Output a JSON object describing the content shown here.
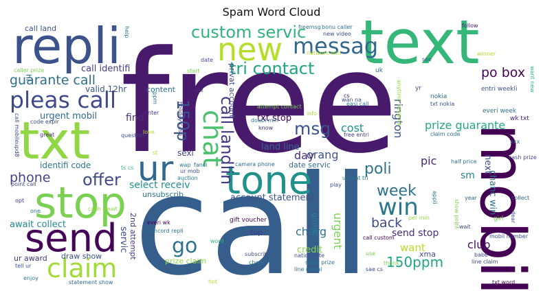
{
  "chart_data": {
    "type": "word_cloud",
    "title": "Spam Word Cloud",
    "words": [
      {
        "text": "free",
        "color": "#481a6c"
      },
      {
        "text": "call",
        "color": "#355e8d"
      },
      {
        "text": "text",
        "color": "#35b779"
      },
      {
        "text": "txt",
        "color": "#90d743"
      },
      {
        "text": "mobil",
        "color": "#440154"
      },
      {
        "text": "repli",
        "color": "#3b528b"
      },
      {
        "text": "stop",
        "color": "#7ad151"
      },
      {
        "text": "tone",
        "color": "#21918c"
      },
      {
        "text": "ur",
        "color": "#31688e"
      },
      {
        "text": "send",
        "color": "#450457"
      },
      {
        "text": "new",
        "color": "#b5de2b"
      },
      {
        "text": "messag",
        "color": "#31688e"
      },
      {
        "text": "pleas call",
        "color": "#3e4a89"
      },
      {
        "text": "claim",
        "color": "#a2da37"
      },
      {
        "text": "custom servic",
        "color": "#2fb47c"
      },
      {
        "text": "tri contact",
        "color": "#20a486"
      },
      {
        "text": "chat",
        "color": "#4ac16d"
      },
      {
        "text": "call landlin",
        "color": "#443983"
      },
      {
        "text": "win",
        "color": "#2a788e"
      },
      {
        "text": "go",
        "color": "#2c728e"
      },
      {
        "text": "msg",
        "color": "#3b528b"
      },
      {
        "text": "150p",
        "color": "#3b528b"
      },
      {
        "text": "offer",
        "color": "#3e4a89"
      },
      {
        "text": "week",
        "color": "#2c728e"
      },
      {
        "text": "poli",
        "color": "#2c728e"
      },
      {
        "text": "guarante call",
        "color": "#2d708e"
      },
      {
        "text": "phone",
        "color": "#414487"
      },
      {
        "text": "150ppm",
        "color": "#20a486"
      },
      {
        "text": "back",
        "color": "#3e4a89"
      },
      {
        "text": "po box",
        "color": "#440154"
      },
      {
        "text": "prize guarante",
        "color": "#22a785"
      },
      {
        "text": "rington",
        "color": "#3b528b"
      },
      {
        "text": "call identifi",
        "color": "#443983"
      },
      {
        "text": "select receiv",
        "color": "#21918c"
      },
      {
        "text": "urgent",
        "color": "#7ad151"
      },
      {
        "text": "charg",
        "color": "#2c728e"
      },
      {
        "text": "orang",
        "color": "#3b528b"
      },
      {
        "text": "cost",
        "color": "#21918c"
      },
      {
        "text": "pic",
        "color": "#482475"
      },
      {
        "text": "club",
        "color": "#471063"
      },
      {
        "text": "day",
        "color": "#472d7b"
      },
      {
        "text": "want",
        "color": "#b5de2b"
      },
      {
        "text": "find",
        "color": "#472d7b"
      },
      {
        "text": "send stop",
        "color": "#472d7b"
      },
      {
        "text": "sm",
        "color": "#26828e"
      },
      {
        "text": "land line",
        "color": "#31688e"
      },
      {
        "text": "account statement",
        "color": "#3b528b"
      },
      {
        "text": "await collect",
        "color": "#23898e"
      },
      {
        "text": "txt stop",
        "color": "#440154"
      },
      {
        "text": "content",
        "color": "#2c728e"
      },
      {
        "text": "urgent mobil",
        "color": "#31688e"
      },
      {
        "text": "valid 12hr",
        "color": "#3b528b"
      },
      {
        "text": "identifi code",
        "color": "#2c728e"
      },
      {
        "text": "date servic",
        "color": "#31688e"
      },
      {
        "text": "privat account",
        "color": "#3e4a89"
      },
      {
        "text": "servic",
        "color": "#3e4a89"
      },
      {
        "text": "2nd attempt",
        "color": "#443983"
      },
      {
        "text": "prize claim",
        "color": "#90d743"
      },
      {
        "text": "draw show",
        "color": "#3b528b"
      },
      {
        "text": "ur award",
        "color": "#46327e"
      },
      {
        "text": "credit",
        "color": "#90d743"
      },
      {
        "text": "game",
        "color": "#26828e"
      },
      {
        "text": "xma",
        "color": "#3e4a89"
      },
      {
        "text": "next",
        "color": "#3e4a89"
      },
      {
        "text": "chanc win",
        "color": "#2c728e"
      },
      {
        "text": "call land",
        "color": "#3b528b"
      },
      {
        "text": "sexi",
        "color": "#414487"
      },
      {
        "text": "unsubscrib",
        "color": "#2a788e"
      },
      {
        "text": "top",
        "color": "#443983"
      },
      {
        "text": "hi",
        "color": "#2d708e"
      },
      {
        "text": "nokia",
        "color": "#2c728e"
      },
      {
        "text": "entri weekli",
        "color": "#3b528b"
      },
      {
        "text": "everi week",
        "color": "#2c728e"
      },
      {
        "text": "wk txt",
        "color": "#482475"
      },
      {
        "text": "claim code",
        "color": "#2c728e"
      },
      {
        "text": "txt nokia",
        "color": "#3b528b"
      },
      {
        "text": "cash prize",
        "color": "#414487"
      },
      {
        "text": "half price",
        "color": "#2c728e"
      },
      {
        "text": "collect",
        "color": "#31688e"
      },
      {
        "text": "girl",
        "color": "#7ad151"
      },
      {
        "text": "mobil number",
        "color": "#3e4a89"
      },
      {
        "text": "babe",
        "color": "#414487"
      },
      {
        "text": "line claim",
        "color": "#3e4a89"
      },
      {
        "text": "join",
        "color": "#440154"
      },
      {
        "text": "txt word",
        "color": "#440154"
      },
      {
        "text": "freemsg",
        "color": "#2a788e"
      },
      {
        "text": "bonu caller",
        "color": "#2c728e"
      },
      {
        "text": "new video",
        "color": "#3e4a89"
      },
      {
        "text": "follow",
        "color": "#481a6c"
      },
      {
        "text": "anytime network",
        "color": "#90d743"
      },
      {
        "text": "want new",
        "color": "#35b779"
      },
      {
        "text": "winner",
        "color": "#b5de2b"
      },
      {
        "text": "network min",
        "color": "#b5de2b"
      },
      {
        "text": "uk",
        "color": "#31688e"
      },
      {
        "text": "yr",
        "color": "#3b528b"
      },
      {
        "text": "see",
        "color": "#31688e"
      },
      {
        "text": "cs",
        "color": "#481a6c"
      },
      {
        "text": "wan na",
        "color": "#3e4a89"
      },
      {
        "text": "easi call",
        "color": "#2c728e"
      },
      {
        "text": "attempt contact",
        "color": "#7ad151"
      },
      {
        "text": "info",
        "color": "#a2da37"
      },
      {
        "text": "doubl min",
        "color": "#2d708e"
      },
      {
        "text": "know",
        "color": "#472d7b"
      },
      {
        "text": "free entri",
        "color": "#414487"
      },
      {
        "text": "xxx",
        "color": "#2c728e"
      },
      {
        "text": "camera phone",
        "color": "#31688e"
      },
      {
        "text": "fanci",
        "color": "#2c728e"
      },
      {
        "text": "wap",
        "color": "#2a788e"
      },
      {
        "text": "ur mob",
        "color": "#3e4a89"
      },
      {
        "text": "auction",
        "color": "#26828e"
      },
      {
        "text": "urgent tri",
        "color": "#2c728e"
      },
      {
        "text": "play",
        "color": "#3b528b"
      },
      {
        "text": "appli",
        "color": "#2c728e"
      },
      {
        "text": "per min",
        "color": "#90d743"
      },
      {
        "text": "show point",
        "color": "#7ad151"
      },
      {
        "text": "year",
        "color": "#31688e"
      },
      {
        "text": "dear",
        "color": "#3b528b"
      },
      {
        "text": "wait",
        "color": "#3e4a89"
      },
      {
        "text": "gift voucher",
        "color": "#440154"
      },
      {
        "text": "choos",
        "color": "#2a788e"
      },
      {
        "text": "everi wk",
        "color": "#440154"
      },
      {
        "text": "camcord repli",
        "color": "#2c728e"
      },
      {
        "text": "word",
        "color": "#35b779"
      },
      {
        "text": "call custom",
        "color": "#440154"
      },
      {
        "text": "nation rate",
        "color": "#3e4a89"
      },
      {
        "text": "show prize",
        "color": "#2c728e"
      },
      {
        "text": "line rental",
        "color": "#2c728e"
      },
      {
        "text": "sae cs",
        "color": "#3e4a89"
      },
      {
        "text": "thank",
        "color": "#7ad151"
      },
      {
        "text": "use",
        "color": "#7ad151"
      },
      {
        "text": "subscrib",
        "color": "#3e4a89"
      },
      {
        "text": "hot",
        "color": "#b5de2b"
      },
      {
        "text": "statement show",
        "color": "#31688e"
      },
      {
        "text": "enjoy",
        "color": "#2c728e"
      },
      {
        "text": "tell ur",
        "color": "#3e4a89"
      },
      {
        "text": "one",
        "color": "#2c728e"
      },
      {
        "text": "opt",
        "color": "#443983"
      },
      {
        "text": "point call",
        "color": "#3e4a89"
      },
      {
        "text": "cash await",
        "color": "#90d743"
      },
      {
        "text": "ts cs",
        "color": "#35b779"
      },
      {
        "text": "call mobileupd8",
        "color": "#3e4a89"
      },
      {
        "text": "code expir",
        "color": "#3e4a89"
      },
      {
        "text": "great",
        "color": "#472d7b"
      },
      {
        "text": "question",
        "color": "#3e4a89"
      },
      {
        "text": "love",
        "color": "#b5de2b"
      },
      {
        "text": "st",
        "color": "#b5de2b"
      },
      {
        "text": "holiday cash",
        "color": "#3e4a89"
      },
      {
        "text": "sex",
        "color": "#472d7b"
      },
      {
        "text": "enter",
        "color": "#472d7b"
      },
      {
        "text": "start",
        "color": "#7ad151"
      },
      {
        "text": "date",
        "color": "#3e4a89"
      },
      {
        "text": "help",
        "color": "#2c728e"
      },
      {
        "text": "caller prize",
        "color": "#7ad151"
      },
      {
        "text": "ppm",
        "color": "#2c728e"
      }
    ]
  }
}
